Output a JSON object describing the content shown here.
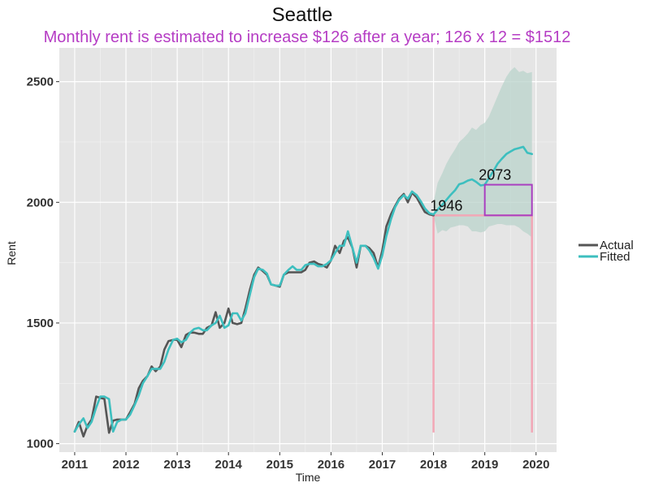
{
  "chart_data": {
    "type": "line",
    "title": "Seattle",
    "subtitle": "Monthly rent is estimated to increase $126 after a year; 126 x 12 = $1512",
    "xlabel": "Time",
    "ylabel": "Rent",
    "xlim": [
      2010.7,
      2020.4
    ],
    "ylim": [
      965,
      2640
    ],
    "xticks": [
      2011,
      2012,
      2013,
      2014,
      2015,
      2016,
      2017,
      2018,
      2019,
      2020
    ],
    "yticks": [
      1000,
      1500,
      2000,
      2500
    ],
    "grid": true,
    "legend_position": "right",
    "colors": {
      "actual": "#555555",
      "fitted": "#3dbfbf",
      "band": "#b9d3cb",
      "reference": "#f2a7b6",
      "box": "#a93fc0",
      "panel": "#e5e5e5",
      "grid": "#ffffff"
    },
    "series": [
      {
        "name": "Actual",
        "points": [
          [
            2011.0,
            1050
          ],
          [
            2011.08,
            1090
          ],
          [
            2011.17,
            1030
          ],
          [
            2011.25,
            1075
          ],
          [
            2011.33,
            1100
          ],
          [
            2011.42,
            1195
          ],
          [
            2011.5,
            1190
          ],
          [
            2011.58,
            1185
          ],
          [
            2011.67,
            1045
          ],
          [
            2011.75,
            1095
          ],
          [
            2011.83,
            1100
          ],
          [
            2011.92,
            1100
          ],
          [
            2012.0,
            1100
          ],
          [
            2012.08,
            1130
          ],
          [
            2012.17,
            1165
          ],
          [
            2012.25,
            1230
          ],
          [
            2012.33,
            1260
          ],
          [
            2012.42,
            1280
          ],
          [
            2012.5,
            1320
          ],
          [
            2012.58,
            1300
          ],
          [
            2012.67,
            1320
          ],
          [
            2012.75,
            1390
          ],
          [
            2012.83,
            1425
          ],
          [
            2012.92,
            1430
          ],
          [
            2013.0,
            1430
          ],
          [
            2013.08,
            1400
          ],
          [
            2013.17,
            1450
          ],
          [
            2013.25,
            1460
          ],
          [
            2013.33,
            1460
          ],
          [
            2013.42,
            1455
          ],
          [
            2013.5,
            1455
          ],
          [
            2013.58,
            1480
          ],
          [
            2013.67,
            1490
          ],
          [
            2013.75,
            1545
          ],
          [
            2013.83,
            1480
          ],
          [
            2013.92,
            1500
          ],
          [
            2014.0,
            1560
          ],
          [
            2014.08,
            1500
          ],
          [
            2014.17,
            1495
          ],
          [
            2014.25,
            1500
          ],
          [
            2014.33,
            1560
          ],
          [
            2014.42,
            1640
          ],
          [
            2014.5,
            1700
          ],
          [
            2014.58,
            1730
          ],
          [
            2014.67,
            1715
          ],
          [
            2014.75,
            1700
          ],
          [
            2014.83,
            1660
          ],
          [
            2014.92,
            1655
          ],
          [
            2015.0,
            1650
          ],
          [
            2015.08,
            1700
          ],
          [
            2015.17,
            1710
          ],
          [
            2015.25,
            1710
          ],
          [
            2015.33,
            1710
          ],
          [
            2015.42,
            1710
          ],
          [
            2015.5,
            1720
          ],
          [
            2015.58,
            1750
          ],
          [
            2015.67,
            1755
          ],
          [
            2015.75,
            1745
          ],
          [
            2015.83,
            1740
          ],
          [
            2015.92,
            1730
          ],
          [
            2016.0,
            1760
          ],
          [
            2016.08,
            1820
          ],
          [
            2016.17,
            1790
          ],
          [
            2016.25,
            1840
          ],
          [
            2016.33,
            1855
          ],
          [
            2016.42,
            1810
          ],
          [
            2016.5,
            1730
          ],
          [
            2016.58,
            1820
          ],
          [
            2016.67,
            1820
          ],
          [
            2016.75,
            1810
          ],
          [
            2016.83,
            1790
          ],
          [
            2016.92,
            1730
          ],
          [
            2017.0,
            1800
          ],
          [
            2017.08,
            1900
          ],
          [
            2017.17,
            1950
          ],
          [
            2017.25,
            1985
          ],
          [
            2017.33,
            2015
          ],
          [
            2017.42,
            2035
          ],
          [
            2017.5,
            2000
          ],
          [
            2017.58,
            2040
          ],
          [
            2017.67,
            2020
          ],
          [
            2017.75,
            1990
          ],
          [
            2017.83,
            1960
          ],
          [
            2017.92,
            1950
          ],
          [
            2018.0,
            1946
          ]
        ]
      },
      {
        "name": "Fitted",
        "points": [
          [
            2011.0,
            1050
          ],
          [
            2011.08,
            1080
          ],
          [
            2011.17,
            1105
          ],
          [
            2011.25,
            1065
          ],
          [
            2011.33,
            1090
          ],
          [
            2011.42,
            1150
          ],
          [
            2011.5,
            1195
          ],
          [
            2011.58,
            1195
          ],
          [
            2011.67,
            1185
          ],
          [
            2011.75,
            1050
          ],
          [
            2011.83,
            1090
          ],
          [
            2011.92,
            1100
          ],
          [
            2012.0,
            1100
          ],
          [
            2012.08,
            1120
          ],
          [
            2012.17,
            1160
          ],
          [
            2012.25,
            1200
          ],
          [
            2012.33,
            1250
          ],
          [
            2012.42,
            1280
          ],
          [
            2012.5,
            1310
          ],
          [
            2012.58,
            1310
          ],
          [
            2012.67,
            1310
          ],
          [
            2012.75,
            1340
          ],
          [
            2012.83,
            1390
          ],
          [
            2012.92,
            1430
          ],
          [
            2013.0,
            1435
          ],
          [
            2013.08,
            1420
          ],
          [
            2013.17,
            1430
          ],
          [
            2013.25,
            1460
          ],
          [
            2013.33,
            1475
          ],
          [
            2013.42,
            1480
          ],
          [
            2013.5,
            1470
          ],
          [
            2013.58,
            1470
          ],
          [
            2013.67,
            1490
          ],
          [
            2013.75,
            1500
          ],
          [
            2013.83,
            1530
          ],
          [
            2013.92,
            1480
          ],
          [
            2014.0,
            1490
          ],
          [
            2014.08,
            1540
          ],
          [
            2014.17,
            1540
          ],
          [
            2014.25,
            1510
          ],
          [
            2014.33,
            1540
          ],
          [
            2014.42,
            1620
          ],
          [
            2014.5,
            1690
          ],
          [
            2014.58,
            1725
          ],
          [
            2014.67,
            1720
          ],
          [
            2014.75,
            1705
          ],
          [
            2014.83,
            1660
          ],
          [
            2014.92,
            1655
          ],
          [
            2015.0,
            1655
          ],
          [
            2015.08,
            1700
          ],
          [
            2015.17,
            1720
          ],
          [
            2015.25,
            1735
          ],
          [
            2015.33,
            1720
          ],
          [
            2015.42,
            1720
          ],
          [
            2015.5,
            1740
          ],
          [
            2015.58,
            1745
          ],
          [
            2015.67,
            1745
          ],
          [
            2015.75,
            1735
          ],
          [
            2015.83,
            1735
          ],
          [
            2015.92,
            1745
          ],
          [
            2016.0,
            1760
          ],
          [
            2016.08,
            1790
          ],
          [
            2016.17,
            1820
          ],
          [
            2016.25,
            1820
          ],
          [
            2016.33,
            1880
          ],
          [
            2016.42,
            1810
          ],
          [
            2016.5,
            1750
          ],
          [
            2016.58,
            1820
          ],
          [
            2016.67,
            1820
          ],
          [
            2016.75,
            1800
          ],
          [
            2016.83,
            1770
          ],
          [
            2016.92,
            1725
          ],
          [
            2017.0,
            1780
          ],
          [
            2017.08,
            1860
          ],
          [
            2017.17,
            1930
          ],
          [
            2017.25,
            1980
          ],
          [
            2017.33,
            2010
          ],
          [
            2017.42,
            2030
          ],
          [
            2017.5,
            2015
          ],
          [
            2017.58,
            2045
          ],
          [
            2017.67,
            2030
          ],
          [
            2017.75,
            2005
          ],
          [
            2017.83,
            1975
          ],
          [
            2017.92,
            1955
          ],
          [
            2018.0,
            1950
          ],
          [
            2018.08,
            1970
          ],
          [
            2018.17,
            1990
          ],
          [
            2018.25,
            2010
          ],
          [
            2018.33,
            2030
          ],
          [
            2018.42,
            2050
          ],
          [
            2018.5,
            2075
          ],
          [
            2018.58,
            2080
          ],
          [
            2018.67,
            2090
          ],
          [
            2018.75,
            2095
          ],
          [
            2018.83,
            2085
          ],
          [
            2018.92,
            2070
          ],
          [
            2019.0,
            2073
          ],
          [
            2019.08,
            2100
          ],
          [
            2019.17,
            2130
          ],
          [
            2019.25,
            2160
          ],
          [
            2019.33,
            2180
          ],
          [
            2019.42,
            2200
          ],
          [
            2019.5,
            2210
          ],
          [
            2019.58,
            2220
          ],
          [
            2019.67,
            2225
          ],
          [
            2019.75,
            2230
          ],
          [
            2019.83,
            2205
          ],
          [
            2019.92,
            2200
          ]
        ]
      }
    ],
    "confidence_band": {
      "x": [
        2018.0,
        2018.08,
        2018.17,
        2018.25,
        2018.33,
        2018.42,
        2018.5,
        2018.58,
        2018.67,
        2018.75,
        2018.83,
        2018.92,
        2019.0,
        2019.08,
        2019.17,
        2019.25,
        2019.33,
        2019.42,
        2019.5,
        2019.58,
        2019.67,
        2019.75,
        2019.83,
        2019.92
      ],
      "upper": [
        2000,
        2080,
        2120,
        2160,
        2190,
        2220,
        2250,
        2265,
        2285,
        2310,
        2300,
        2320,
        2330,
        2355,
        2400,
        2440,
        2480,
        2520,
        2545,
        2560,
        2540,
        2545,
        2535,
        2540
      ],
      "lower": [
        1946,
        1870,
        1885,
        1880,
        1895,
        1900,
        1905,
        1905,
        1900,
        1880,
        1880,
        1875,
        1880,
        1900,
        1905,
        1910,
        1910,
        1905,
        1905,
        1905,
        1895,
        1880,
        1870,
        1855
      ]
    },
    "reference_lines": {
      "vertical_x": [
        2018.0,
        2019.92
      ],
      "from_y": 1046,
      "horizontal_y": 1946
    },
    "annotations": [
      {
        "text": "1946",
        "x": 2018.25,
        "y": 1946
      },
      {
        "text": "2073",
        "x": 2019.2,
        "y": 2073
      }
    ],
    "highlight_box": {
      "x0": 2019.0,
      "x1": 2019.92,
      "y0": 1946,
      "y1": 2073
    }
  }
}
